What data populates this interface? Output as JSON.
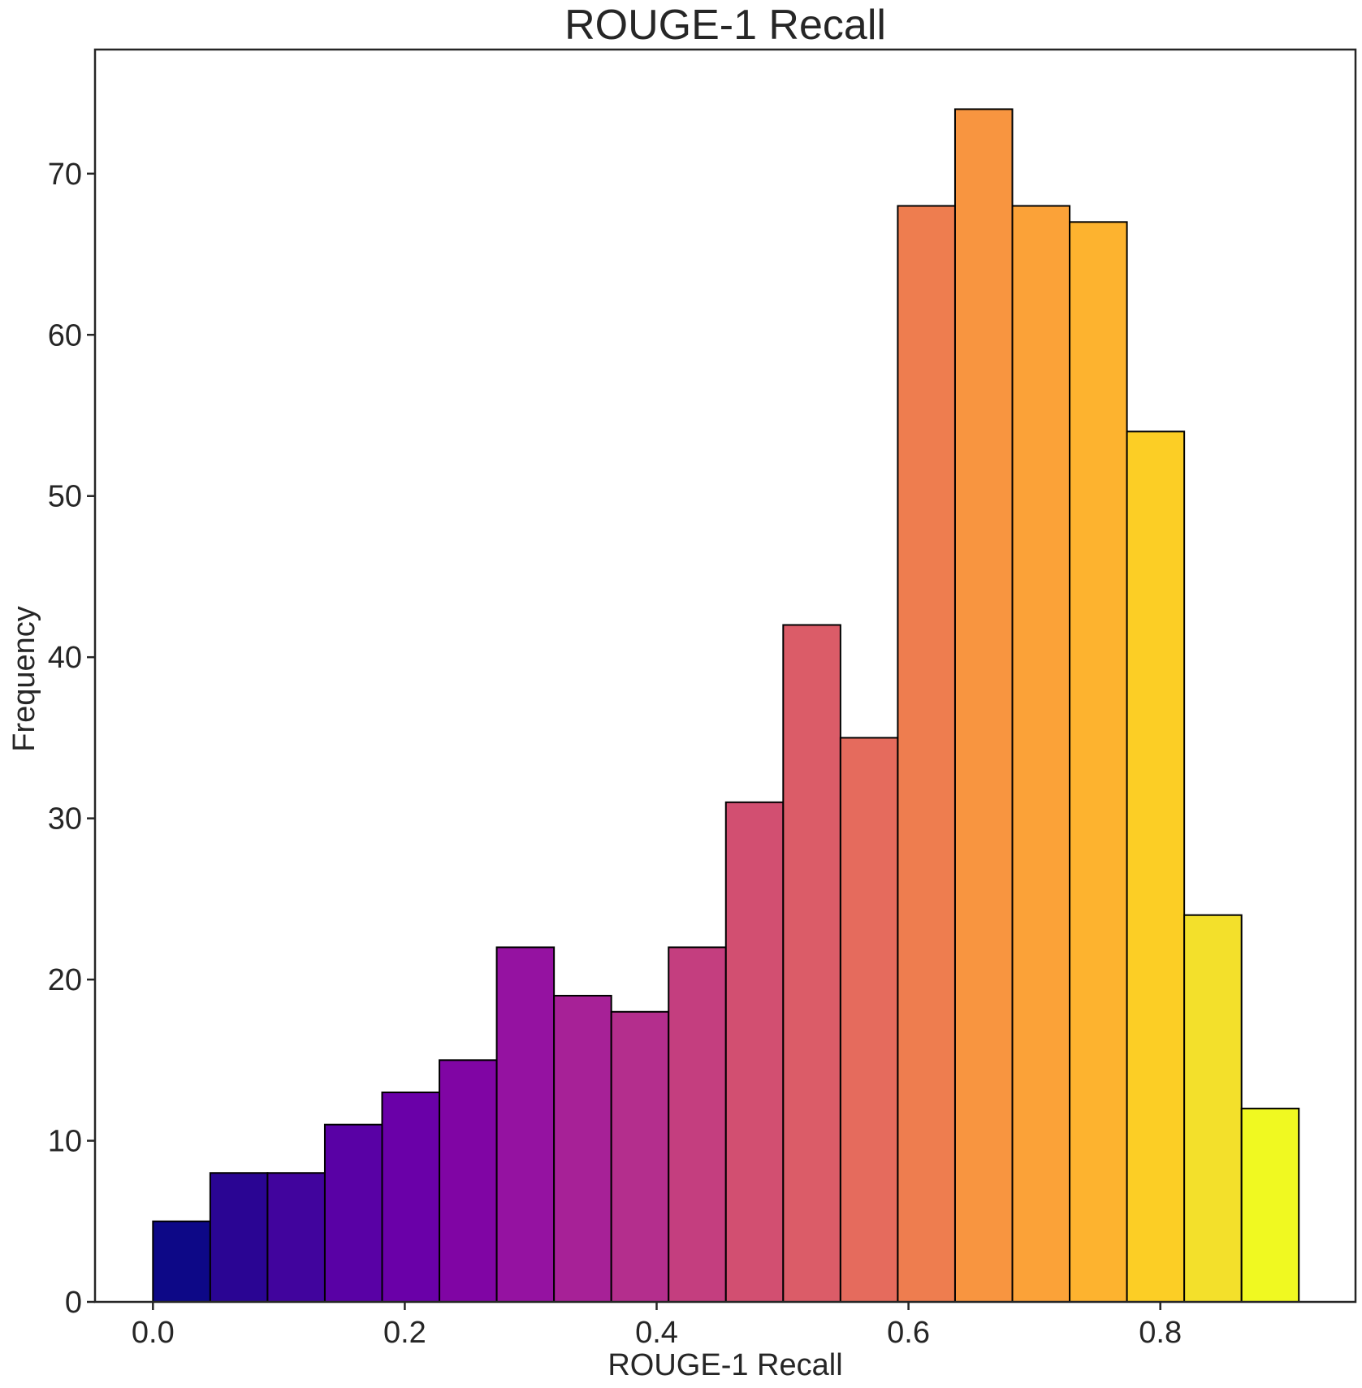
{
  "chart_data": {
    "type": "bar",
    "title": "ROUGE-1 Recall",
    "xlabel": "ROUGE-1 Recall",
    "ylabel": "Frequency",
    "bin_edges": [
      0.0,
      0.0455,
      0.091,
      0.1365,
      0.182,
      0.2275,
      0.273,
      0.3185,
      0.364,
      0.4095,
      0.455,
      0.5005,
      0.546,
      0.5915,
      0.637,
      0.6825,
      0.728,
      0.7735,
      0.819,
      0.8645,
      0.91
    ],
    "values": [
      5,
      8,
      8,
      11,
      13,
      15,
      22,
      19,
      18,
      22,
      31,
      42,
      35,
      68,
      74,
      68,
      67,
      54,
      24,
      12
    ],
    "colors": [
      "#0d0887",
      "#2a0593",
      "#41049d",
      "#5901a5",
      "#6a00a8",
      "#8005a4",
      "#9512a1",
      "#a72197",
      "#b42e8d",
      "#c43e7f",
      "#d24f71",
      "#db5c68",
      "#e56b5d",
      "#ee7d4f",
      "#f89540",
      "#fba238",
      "#fdb32f",
      "#fcce25",
      "#f3e02b",
      "#f0f921"
    ],
    "xlim": [
      -0.046,
      0.955
    ],
    "ylim": [
      0,
      77.7
    ],
    "xticks": [
      0.0,
      0.2,
      0.4,
      0.6,
      0.8
    ],
    "xtick_labels": [
      "0.0",
      "0.2",
      "0.4",
      "0.6",
      "0.8"
    ],
    "yticks": [
      0,
      10,
      20,
      30,
      40,
      50,
      60,
      70
    ],
    "ytick_labels": [
      "0",
      "10",
      "20",
      "30",
      "40",
      "50",
      "60",
      "70"
    ],
    "grid": false,
    "legend": false
  }
}
